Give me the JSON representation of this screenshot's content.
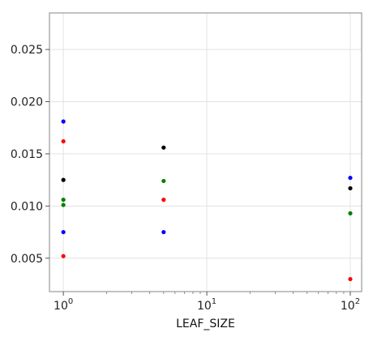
{
  "chart_data": {
    "type": "scatter",
    "title": "",
    "xlabel": "LEAF_SIZE",
    "ylabel": "",
    "xscale": "log",
    "xlim": [
      0.8,
      120
    ],
    "ylim": [
      0.0018,
      0.0285
    ],
    "grid": true,
    "x_ticks": [
      {
        "value": 1,
        "base": "10",
        "exp": "0"
      },
      {
        "value": 10,
        "base": "10",
        "exp": "1"
      },
      {
        "value": 100,
        "base": "10",
        "exp": "2"
      }
    ],
    "y_ticks": [
      {
        "value": 0.005,
        "label": "0.005"
      },
      {
        "value": 0.01,
        "label": "0.010"
      },
      {
        "value": 0.015,
        "label": "0.015"
      },
      {
        "value": 0.02,
        "label": "0.020"
      },
      {
        "value": 0.025,
        "label": "0.025"
      }
    ],
    "series": [
      {
        "color": "#0000ff",
        "points": [
          [
            1,
            0.0181
          ],
          [
            1,
            0.0075
          ],
          [
            5,
            0.0075
          ],
          [
            100,
            0.0127
          ]
        ]
      },
      {
        "color": "#ff0000",
        "points": [
          [
            1,
            0.0162
          ],
          [
            1,
            0.0052
          ],
          [
            5,
            0.0106
          ],
          [
            100,
            0.003
          ]
        ]
      },
      {
        "color": "#000000",
        "points": [
          [
            1,
            0.0125
          ],
          [
            5,
            0.0156
          ],
          [
            100,
            0.0117
          ]
        ]
      },
      {
        "color": "#008000",
        "points": [
          [
            1,
            0.0106
          ],
          [
            1,
            0.0101
          ],
          [
            5,
            0.0124
          ],
          [
            100,
            0.0093
          ]
        ]
      }
    ]
  }
}
